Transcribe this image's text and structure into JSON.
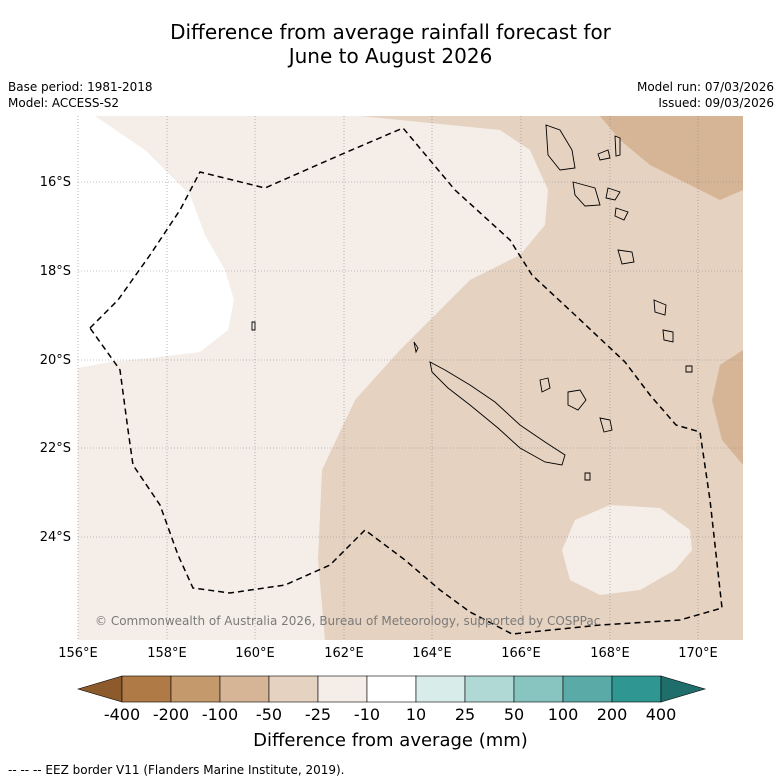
{
  "title_line1": "Difference from average rainfall forecast for",
  "title_line2": "June to August 2026",
  "base_period": "Base period: 1981-2018",
  "model": "Model: ACCESS-S2",
  "model_run": "Model run: 07/03/2026",
  "issued": "Issued: 09/03/2026",
  "lat_labels": [
    "16°S",
    "18°S",
    "20°S",
    "22°S",
    "24°S"
  ],
  "lon_labels": [
    "156°E",
    "158°E",
    "160°E",
    "162°E",
    "164°E",
    "166°E",
    "168°E",
    "170°E"
  ],
  "copyright": "© Commonwealth of Australia 2026, Bureau of Meteorology, supported by COSPPac",
  "colorbar": {
    "ticks": [
      "-400",
      "-200",
      "-100",
      "-50",
      "-25",
      "-10",
      "10",
      "25",
      "50",
      "100",
      "200",
      "400"
    ],
    "colors": [
      "#8c5a2b",
      "#b07a46",
      "#c49a6c",
      "#d6b596",
      "#e6d2c0",
      "#f5eee8",
      "#ffffff",
      "#d8ecea",
      "#b0d9d6",
      "#88c4c0",
      "#5aaba7",
      "#2f9692",
      "#1f6e6b"
    ],
    "label": "Difference from average (mm)"
  },
  "footer": "--  --  -- EEZ border V11 (Flanders Marine Institute, 2019)."
}
